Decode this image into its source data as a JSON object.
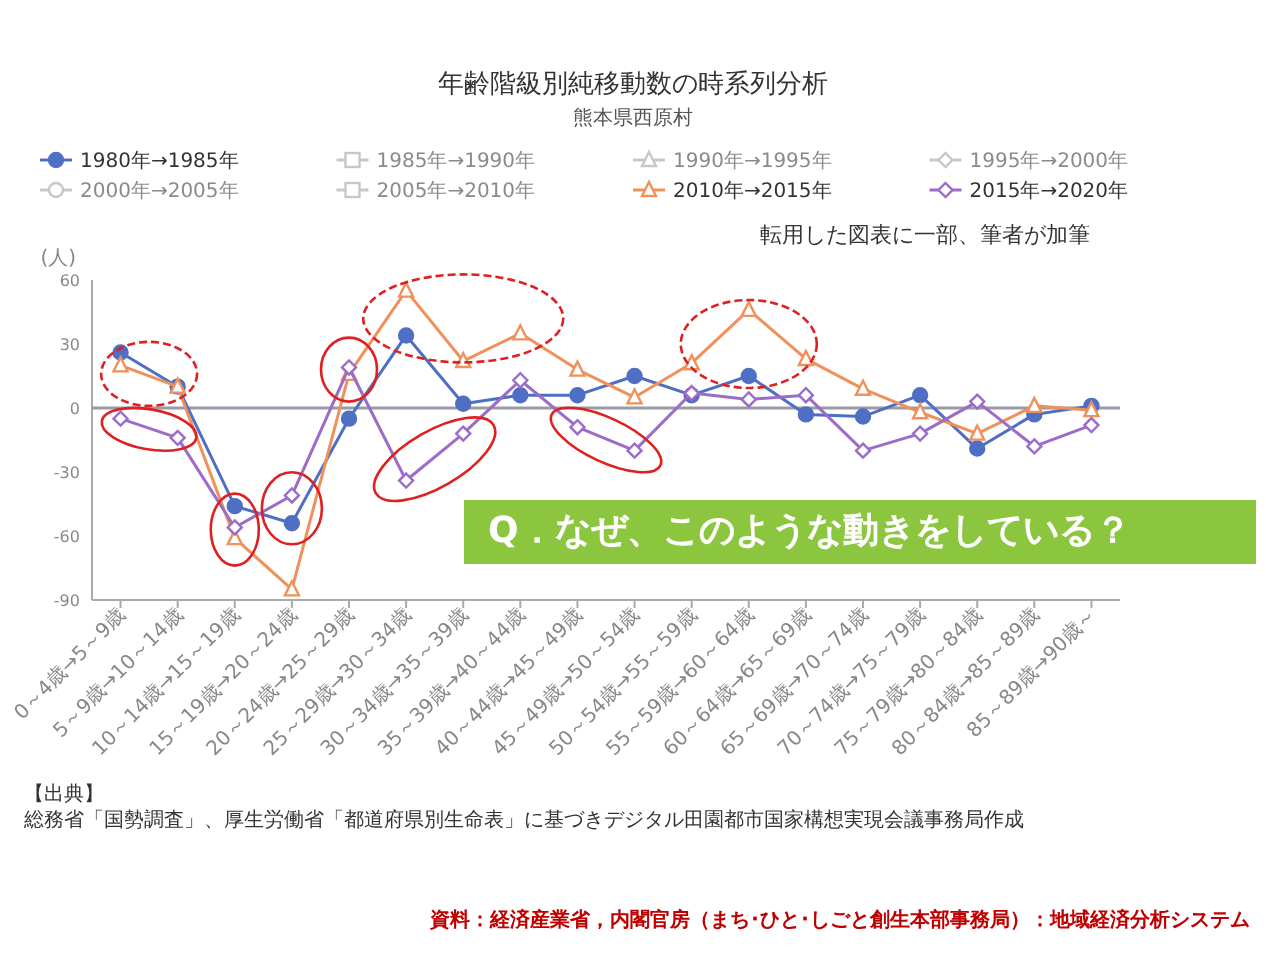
{
  "chart_data": {
    "type": "line",
    "title": "年齢階級別純移動数の時系列分析",
    "subtitle": "熊本県西原村",
    "ylabel": "(人)",
    "categories": [
      "0～4歳→5～9歳",
      "5～9歳→10～14歳",
      "10～14歳→15～19歳",
      "15～19歳→20～24歳",
      "20～24歳→25～29歳",
      "25～29歳→30～34歳",
      "30～34歳→35～39歳",
      "35～39歳→40～44歳",
      "40～44歳→45～49歳",
      "45～49歳→50～54歳",
      "50～54歳→55～59歳",
      "55～59歳→60～64歳",
      "60～64歳→65～69歳",
      "65～69歳→70～74歳",
      "70～74歳→75～79歳",
      "75～79歳→80～84歳",
      "80～84歳→85～89歳",
      "85～89歳→90歳～"
    ],
    "series": [
      {
        "name": "1980年→1985年",
        "color": "#4e6fc4",
        "marker": "circle",
        "values": [
          26,
          10,
          -46,
          -54,
          -5,
          34,
          2,
          6,
          6,
          15,
          6,
          15,
          -3,
          -4,
          6,
          -19,
          -3,
          1
        ]
      },
      {
        "name": "1985年→1990年",
        "color": "#c8c8c8",
        "marker": "square",
        "values": [
          null,
          null,
          null,
          null,
          null,
          null,
          null,
          null,
          null,
          null,
          null,
          null,
          null,
          null,
          null,
          null,
          null,
          null
        ]
      },
      {
        "name": "1990年→1995年",
        "color": "#c8c8c8",
        "marker": "triangle",
        "values": [
          null,
          null,
          null,
          null,
          null,
          null,
          null,
          null,
          null,
          null,
          null,
          null,
          null,
          null,
          null,
          null,
          null,
          null
        ]
      },
      {
        "name": "1995年→2000年",
        "color": "#c8c8c8",
        "marker": "diamond",
        "values": [
          null,
          null,
          null,
          null,
          null,
          null,
          null,
          null,
          null,
          null,
          null,
          null,
          null,
          null,
          null,
          null,
          null,
          null
        ]
      },
      {
        "name": "2000年→2005年",
        "color": "#c8c8c8",
        "marker": "circle",
        "values": [
          null,
          null,
          null,
          null,
          null,
          null,
          null,
          null,
          null,
          null,
          null,
          null,
          null,
          null,
          null,
          null,
          null,
          null
        ]
      },
      {
        "name": "2005年→2010年",
        "color": "#c8c8c8",
        "marker": "square",
        "values": [
          null,
          null,
          null,
          null,
          null,
          null,
          null,
          null,
          null,
          null,
          null,
          null,
          null,
          null,
          null,
          null,
          null,
          null
        ]
      },
      {
        "name": "2010年→2015年",
        "color": "#f0905a",
        "marker": "triangle",
        "values": [
          20,
          10,
          -61,
          -85,
          16,
          55,
          22,
          35,
          18,
          5,
          21,
          46,
          23,
          9,
          -2,
          -12,
          1,
          -1
        ]
      },
      {
        "name": "2015年→2020年",
        "color": "#9b6cc8",
        "marker": "diamond",
        "values": [
          -5,
          -14,
          -56,
          -41,
          19,
          -34,
          -12,
          13,
          -9,
          -20,
          7,
          4,
          6,
          -20,
          -12,
          3,
          -18,
          -8
        ]
      }
    ],
    "ylim": [
      -90,
      60
    ],
    "yticks": [
      -90,
      -60,
      -30,
      0,
      30,
      60
    ],
    "legend": "top",
    "ref_lines": [
      {
        "axis": "y",
        "value": 0,
        "color": "#9a9aa8"
      }
    ],
    "annotations": [
      "転用した図表に一部、筆者が加筆",
      "Q．なぜ、このような動きをしている？",
      "【出典】",
      "総務省「国勢調査」、厚生労働省「都道府県別生命表」に基づきデジタル田園都市国家構想実現会議事務局作成",
      "資料：経済産業省，内閣官房（まち･ひと･しごと創生本部事務局）：地域経済分析システム"
    ]
  }
}
